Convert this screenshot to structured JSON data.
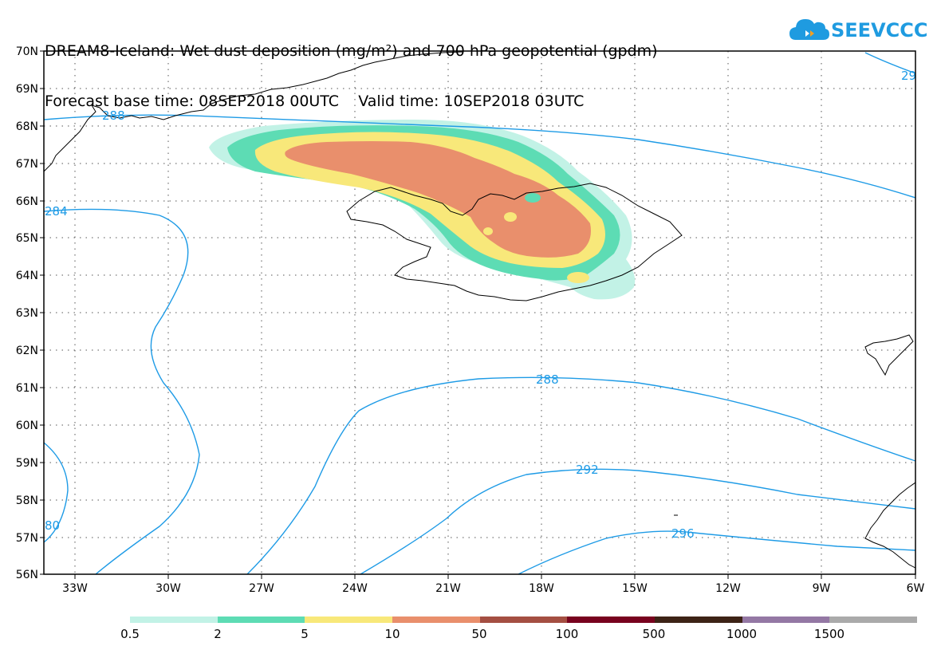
{
  "title": {
    "line1": "DREAM8-Iceland: Wet dust deposition (mg/m²) and 700 hPa geopotential (gpdm)",
    "line2": "Forecast base time: 08SEP2018 00UTC    Valid time: 10SEP2018 03UTC"
  },
  "logo": {
    "text": "SEEVCCC",
    "icon": "cloud-icon",
    "color": "#1f9be0"
  },
  "axes": {
    "lat_labels": [
      "70N",
      "69N",
      "68N",
      "67N",
      "66N",
      "65N",
      "64N",
      "63N",
      "62N",
      "61N",
      "60N",
      "59N",
      "58N",
      "57N",
      "56N"
    ],
    "lon_labels": [
      "33W",
      "30W",
      "27W",
      "24W",
      "21W",
      "18W",
      "15W",
      "12W",
      "9W",
      "6W"
    ]
  },
  "contours": {
    "color": "#1e9be6",
    "labels": [
      "288",
      "284",
      "288",
      "292",
      "296",
      "80",
      "29"
    ]
  },
  "legend": {
    "colors": [
      "#c2f2e6",
      "#5ddcb4",
      "#f8e87a",
      "#e98f6c",
      "#a44f42",
      "#78021e",
      "#3d2316",
      "#9478a4",
      "#aaaaaa"
    ],
    "labels": [
      "0.5",
      "2",
      "5",
      "10",
      "50",
      "100",
      "500",
      "1000",
      "1500"
    ]
  },
  "deposition_colors": {
    "c1": "#c2f2e6",
    "c2": "#5ddcb4",
    "c3": "#f8e87a",
    "c4": "#e98f6c"
  }
}
